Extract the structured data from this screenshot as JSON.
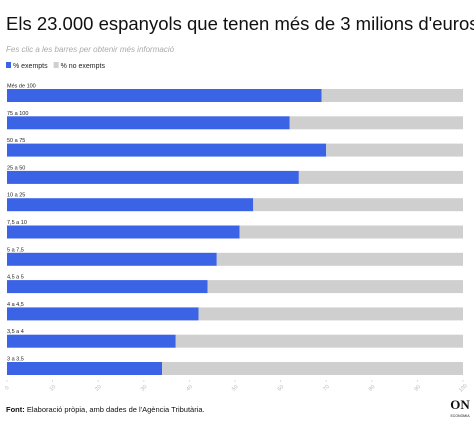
{
  "chart_data": {
    "type": "stacked-bar-horizontal",
    "title": "Els 23.000 espanyols que tenen més de 3 milions d'euros",
    "subtitle": "Fes clic a les barres per obtenir més informació",
    "categories": [
      "Més de 100",
      "75 a 100",
      "50 a 75",
      "25 a 50",
      "10 a 25",
      "7,5 a 10",
      "5 a 7,5",
      "4,5 a 5",
      "4 a 4,5",
      "3,5 a 4",
      "3 a 3,5"
    ],
    "series": [
      {
        "name": "% exempts",
        "color": "#3b63e6",
        "values": [
          69,
          62,
          70,
          64,
          54,
          51,
          46,
          44,
          42,
          37,
          34
        ]
      },
      {
        "name": "% no exempts",
        "color": "#cfcfcf",
        "values": [
          31,
          38,
          30,
          36,
          46,
          49,
          54,
          56,
          58,
          63,
          66
        ]
      }
    ],
    "xlim": [
      0,
      100
    ],
    "xticks": [
      0,
      10,
      20,
      30,
      40,
      50,
      60,
      70,
      80,
      90,
      100
    ],
    "source_label": "Font:",
    "source": "Elaboració pròpia, amb dades de l'Agència Tributària.",
    "logo": "ON",
    "logo_sub": "ECONOMIA"
  }
}
